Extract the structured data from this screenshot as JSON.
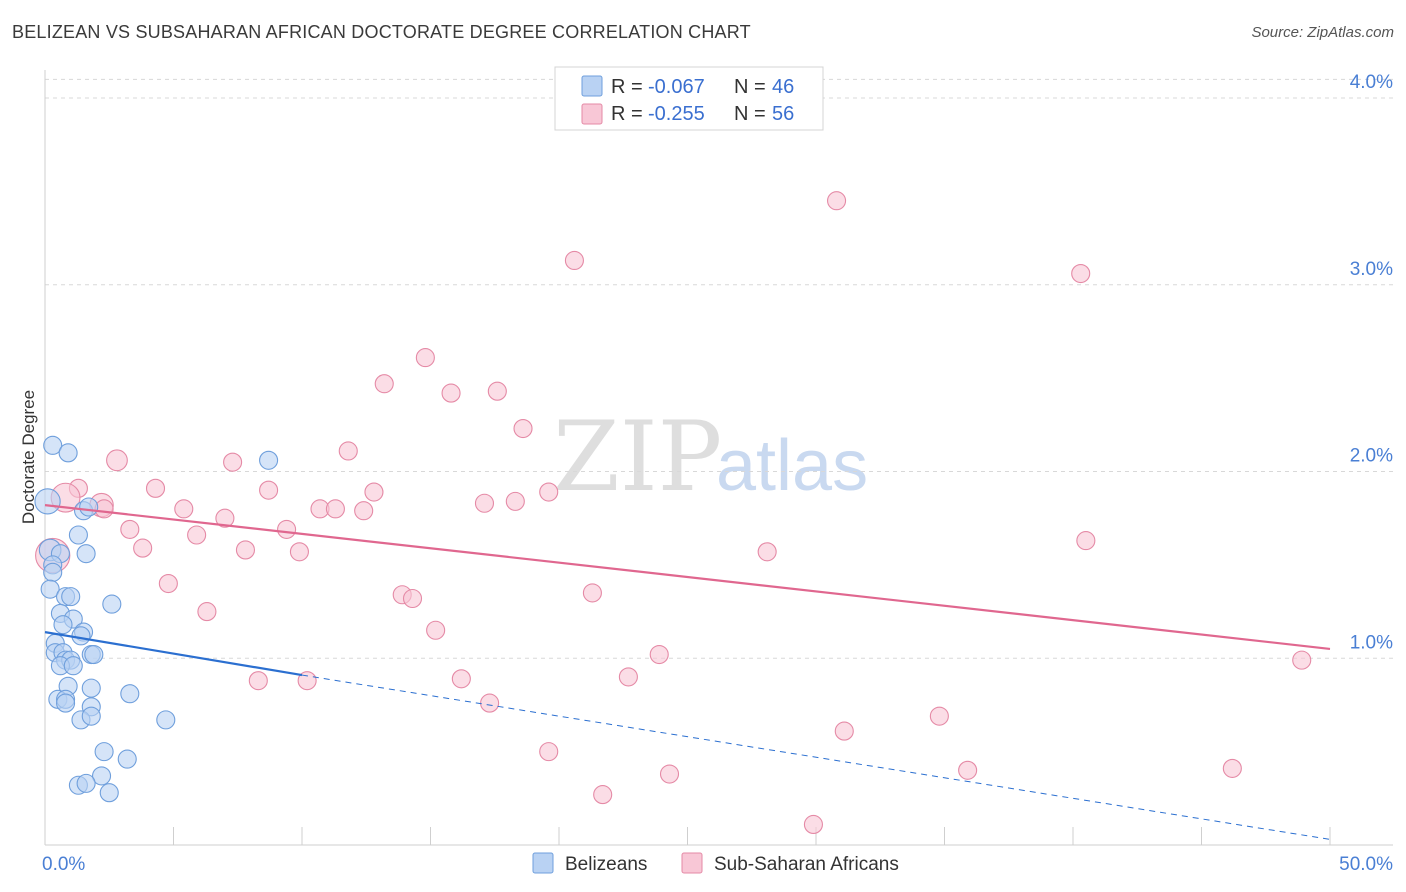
{
  "header": {
    "title": "BELIZEAN VS SUBSAHARAN AFRICAN DOCTORATE DEGREE CORRELATION CHART",
    "source": "Source: ZipAtlas.com"
  },
  "watermark": {
    "zip": "ZIP",
    "atlas": "atlas"
  },
  "colors": {
    "blue_fill": "#b9d2f3",
    "blue_stroke": "#6f9fdc",
    "blue_line": "#2b6fd0",
    "pink_fill": "#f8c7d6",
    "pink_stroke": "#e58aa6",
    "pink_line": "#e0678f",
    "grid": "#d8d8d8",
    "axis_label": "#4a7fd4"
  },
  "legend": {
    "rows": [
      {
        "r_label": "R = ",
        "r_value": "-0.067",
        "n_label": "N = ",
        "n_value": "46"
      },
      {
        "r_label": "R = ",
        "r_value": "-0.255",
        "n_label": "N = ",
        "n_value": "56"
      }
    ]
  },
  "chart_data": {
    "type": "scatter",
    "ylabel": "Doctorate Degree",
    "xlim": [
      0,
      50
    ],
    "ylim": [
      0,
      4.15
    ],
    "y_ticks": [
      {
        "value": 1,
        "label": "1.0%"
      },
      {
        "value": 2,
        "label": "2.0%"
      },
      {
        "value": 3,
        "label": "3.0%"
      },
      {
        "value": 4,
        "label": "4.0%"
      }
    ],
    "x_tick_labels": [
      {
        "value": 0,
        "label": "0.0%"
      },
      {
        "value": 50,
        "label": "50.0%"
      }
    ],
    "x_minor_ticks": [
      5,
      10,
      15,
      20,
      25,
      30,
      35,
      40,
      45,
      50
    ],
    "grid": "horizontal-dashed",
    "legend_position": "top-center",
    "series": [
      {
        "name": "Belizeans",
        "color_key": "blue",
        "trend": {
          "x0": 0,
          "y0": 1.14,
          "x1": 10,
          "y1": 0.91,
          "dashed_to_x": 50,
          "dashed_to_y": 0.03
        },
        "points": [
          [
            0.3,
            2.14
          ],
          [
            0.9,
            2.1
          ],
          [
            0.1,
            1.84
          ],
          [
            1.5,
            1.79
          ],
          [
            1.7,
            1.81
          ],
          [
            1.3,
            1.66
          ],
          [
            0.2,
            1.58
          ],
          [
            0.6,
            1.56
          ],
          [
            1.6,
            1.56
          ],
          [
            0.3,
            1.5
          ],
          [
            0.3,
            1.46
          ],
          [
            0.2,
            1.37
          ],
          [
            0.8,
            1.33
          ],
          [
            1.0,
            1.33
          ],
          [
            2.6,
            1.29
          ],
          [
            0.6,
            1.24
          ],
          [
            1.1,
            1.21
          ],
          [
            0.7,
            1.18
          ],
          [
            1.5,
            1.14
          ],
          [
            1.4,
            1.12
          ],
          [
            0.4,
            1.08
          ],
          [
            0.4,
            1.03
          ],
          [
            0.7,
            1.03
          ],
          [
            1.8,
            1.02
          ],
          [
            1.9,
            1.02
          ],
          [
            0.8,
            0.99
          ],
          [
            1.0,
            0.99
          ],
          [
            0.6,
            0.96
          ],
          [
            1.1,
            0.96
          ],
          [
            0.9,
            0.85
          ],
          [
            1.8,
            0.84
          ],
          [
            3.3,
            0.81
          ],
          [
            0.5,
            0.78
          ],
          [
            0.8,
            0.78
          ],
          [
            0.8,
            0.76
          ],
          [
            1.8,
            0.74
          ],
          [
            1.4,
            0.67
          ],
          [
            1.8,
            0.69
          ],
          [
            4.7,
            0.67
          ],
          [
            2.3,
            0.5
          ],
          [
            3.2,
            0.46
          ],
          [
            2.2,
            0.37
          ],
          [
            1.3,
            0.32
          ],
          [
            1.6,
            0.33
          ],
          [
            2.5,
            0.28
          ],
          [
            8.7,
            2.06
          ]
        ],
        "sizes": [
          1,
          1,
          1.4,
          1,
          1,
          1,
          1.2,
          1,
          1,
          1,
          1,
          1,
          1,
          1,
          1,
          1,
          1,
          1,
          1,
          1,
          1,
          1,
          1,
          1,
          1,
          1,
          1,
          1,
          1,
          1,
          1,
          1,
          1,
          1,
          1,
          1,
          1,
          1,
          1,
          1,
          1,
          1,
          1,
          1,
          1,
          1
        ]
      },
      {
        "name": "Sub-Saharan Africans",
        "color_key": "pink",
        "trend": {
          "x0": 0,
          "y0": 1.82,
          "x1": 50,
          "y1": 1.05
        },
        "points": [
          [
            30.8,
            3.45
          ],
          [
            20.6,
            3.13
          ],
          [
            40.3,
            3.06
          ],
          [
            14.8,
            2.61
          ],
          [
            13.2,
            2.47
          ],
          [
            15.8,
            2.42
          ],
          [
            17.6,
            2.43
          ],
          [
            18.6,
            2.23
          ],
          [
            11.8,
            2.11
          ],
          [
            2.8,
            2.06
          ],
          [
            7.3,
            2.05
          ],
          [
            1.3,
            1.91
          ],
          [
            4.3,
            1.91
          ],
          [
            8.7,
            1.9
          ],
          [
            12.8,
            1.89
          ],
          [
            19.6,
            1.89
          ],
          [
            0.8,
            1.86
          ],
          [
            2.2,
            1.82
          ],
          [
            2.3,
            1.8
          ],
          [
            17.1,
            1.83
          ],
          [
            18.3,
            1.84
          ],
          [
            5.4,
            1.8
          ],
          [
            10.7,
            1.8
          ],
          [
            11.3,
            1.8
          ],
          [
            12.4,
            1.79
          ],
          [
            7.0,
            1.75
          ],
          [
            3.3,
            1.69
          ],
          [
            9.4,
            1.69
          ],
          [
            5.9,
            1.66
          ],
          [
            40.5,
            1.63
          ],
          [
            3.8,
            1.59
          ],
          [
            7.8,
            1.58
          ],
          [
            9.9,
            1.57
          ],
          [
            28.1,
            1.57
          ],
          [
            0.3,
            1.55
          ],
          [
            4.8,
            1.4
          ],
          [
            13.9,
            1.34
          ],
          [
            14.3,
            1.32
          ],
          [
            21.3,
            1.35
          ],
          [
            6.3,
            1.25
          ],
          [
            15.2,
            1.15
          ],
          [
            23.9,
            1.02
          ],
          [
            48.9,
            0.99
          ],
          [
            16.2,
            0.89
          ],
          [
            22.7,
            0.9
          ],
          [
            8.3,
            0.88
          ],
          [
            10.2,
            0.88
          ],
          [
            17.3,
            0.76
          ],
          [
            34.8,
            0.69
          ],
          [
            31.1,
            0.61
          ],
          [
            19.6,
            0.5
          ],
          [
            24.3,
            0.38
          ],
          [
            35.9,
            0.4
          ],
          [
            46.2,
            0.41
          ],
          [
            21.7,
            0.27
          ],
          [
            29.9,
            0.11
          ]
        ],
        "sizes": [
          1,
          1,
          1,
          1,
          1,
          1,
          1,
          1,
          1,
          1.15,
          1,
          1,
          1,
          1,
          1,
          1,
          1.6,
          1.3,
          1,
          1,
          1,
          1,
          1,
          1,
          1,
          1,
          1,
          1,
          1,
          1,
          1,
          1,
          1,
          1,
          1.9,
          1,
          1,
          1,
          1,
          1,
          1,
          1,
          1,
          1,
          1,
          1,
          1,
          1,
          1,
          1,
          1,
          1,
          1,
          1,
          1,
          1
        ]
      }
    ]
  }
}
